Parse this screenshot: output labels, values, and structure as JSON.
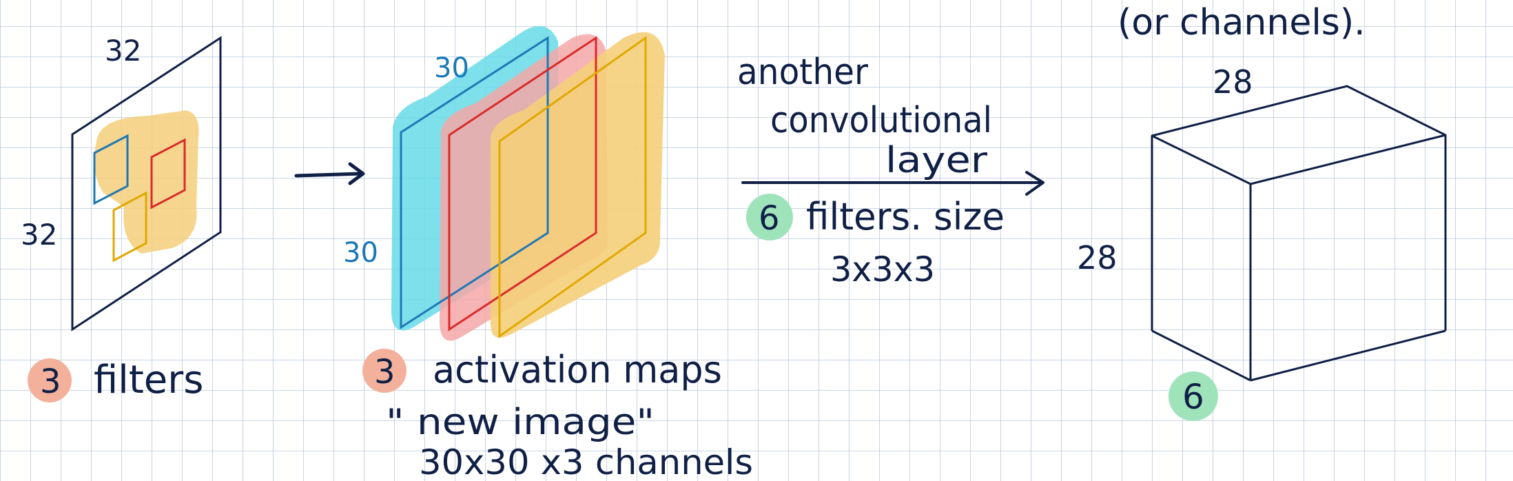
{
  "colors": {
    "grid": "#b9c8db",
    "ink": "#0f1f45",
    "blue_line": "#1f78b4",
    "red_line": "#d92b2b",
    "orange_line": "#e0a800",
    "cyan_fill": "#66dbe8",
    "pink_fill": "#f4a7a7",
    "yellow_fill": "#f5cf7a",
    "badge_salmon": "#f3b19c",
    "badge_green": "#9fe3bb"
  },
  "top_text": "(or channels).",
  "input": {
    "width_label": "32",
    "height_label": "32",
    "badge_number": "3",
    "caption": "filters"
  },
  "activation": {
    "width_label": "30",
    "height_label": "30",
    "badge_number": "3",
    "caption_line1": "activation maps",
    "caption_line2": "\" new image\"",
    "caption_line3": "30x30 x3   channels"
  },
  "layer": {
    "line1": "another",
    "line2": "convolutional",
    "line3": "layer",
    "badge_number": "6",
    "filters_text": "filters. size",
    "size_text": "3x3x3"
  },
  "output": {
    "width_label": "28",
    "height_label": "28",
    "depth_badge": "6"
  }
}
